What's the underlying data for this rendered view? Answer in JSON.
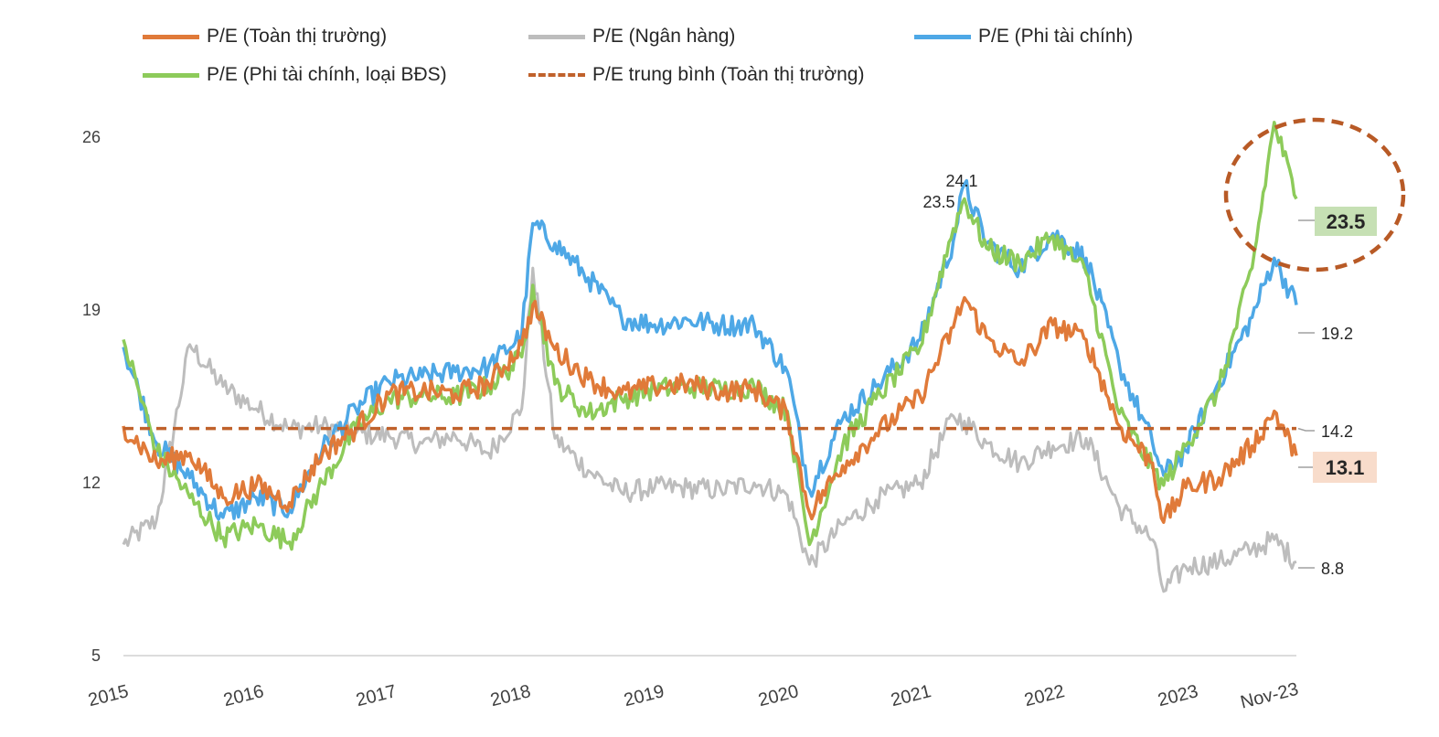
{
  "legend": [
    {
      "label": "P/E (Toàn thị trường)",
      "color": "#E07A39",
      "style": "solid"
    },
    {
      "label": "P/E (Ngân hàng)",
      "color": "#BDBDBD",
      "style": "solid"
    },
    {
      "label": "P/E (Phi tài chính)",
      "color": "#4EA8E6",
      "style": "solid"
    },
    {
      "label": "P/E (Phi tài chính, loại BĐS)",
      "color": "#8DCB5A",
      "style": "solid"
    },
    {
      "label": "P/E trung bình (Toàn thị trường)",
      "color": "#C0612B",
      "style": "dashed"
    }
  ],
  "chart_data": {
    "type": "line",
    "x_axis": {
      "tick_labels": [
        "2015",
        "2016",
        "2017",
        "2018",
        "2019",
        "2020",
        "2021",
        "2022",
        "2023",
        "Nov-23"
      ],
      "range": [
        "2015-01",
        "2023-11"
      ]
    },
    "y_axis": {
      "ticks": [
        5,
        12,
        19,
        26
      ],
      "range": [
        5,
        27
      ],
      "grid": false
    },
    "x": [
      "2015-01",
      "2015-04",
      "2015-07",
      "2015-10",
      "2016-01",
      "2016-04",
      "2016-07",
      "2016-10",
      "2017-01",
      "2017-04",
      "2017-07",
      "2017-10",
      "2018-01",
      "2018-02",
      "2018-04",
      "2018-07",
      "2018-10",
      "2019-01",
      "2019-04",
      "2019-07",
      "2019-10",
      "2020-01",
      "2020-03",
      "2020-06",
      "2020-09",
      "2021-01",
      "2021-04",
      "2021-05",
      "2021-07",
      "2021-10",
      "2022-01",
      "2022-04",
      "2022-07",
      "2022-10",
      "2022-11",
      "2023-01",
      "2023-04",
      "2023-07",
      "2023-09",
      "2023-11"
    ],
    "series": [
      {
        "name": "P/E (Toàn thị trường)",
        "color": "#E07A39",
        "values": [
          14.3,
          12.8,
          13.2,
          11.4,
          11.9,
          11.2,
          13.2,
          14.2,
          15.6,
          15.7,
          15.6,
          16.0,
          17.6,
          19.2,
          17.4,
          16.2,
          15.6,
          15.9,
          16.0,
          15.7,
          15.8,
          14.8,
          10.8,
          12.7,
          14.0,
          15.5,
          18.3,
          19.5,
          17.9,
          16.8,
          18.4,
          17.8,
          14.3,
          12.8,
          10.4,
          11.8,
          12.2,
          13.5,
          14.9,
          13.1
        ]
      },
      {
        "name": "P/E (Ngân hàng)",
        "color": "#BDBDBD",
        "values": [
          9.5,
          10.5,
          17.6,
          15.9,
          15.0,
          14.2,
          14.3,
          14.0,
          13.9,
          13.6,
          13.9,
          13.2,
          15.0,
          20.7,
          13.8,
          12.5,
          11.6,
          11.8,
          11.8,
          11.7,
          12.0,
          11.5,
          8.7,
          10.3,
          11.3,
          12.0,
          14.7,
          14.5,
          13.6,
          12.8,
          13.5,
          13.8,
          11.0,
          9.7,
          7.6,
          8.6,
          8.8,
          9.3,
          9.7,
          8.8
        ]
      },
      {
        "name": "P/E (Phi tài chính)",
        "color": "#4EA8E6",
        "values": [
          17.5,
          13.6,
          12.2,
          10.6,
          11.4,
          10.9,
          13.4,
          15.0,
          16.1,
          16.3,
          16.5,
          16.7,
          18.0,
          22.5,
          21.7,
          20.3,
          18.7,
          18.4,
          18.6,
          18.4,
          18.4,
          16.5,
          11.7,
          14.6,
          15.9,
          17.8,
          21.8,
          24.1,
          21.7,
          20.7,
          22.1,
          21.1,
          16.8,
          13.6,
          12.3,
          13.3,
          16.1,
          18.7,
          21.1,
          19.2
        ]
      },
      {
        "name": "P/E (Phi tài chính, loại BĐS)",
        "color": "#8DCB5A",
        "values": [
          17.8,
          13.3,
          11.4,
          9.8,
          10.3,
          9.6,
          12.0,
          14.2,
          15.4,
          15.5,
          15.5,
          15.9,
          17.1,
          20.0,
          16.0,
          14.8,
          15.4,
          15.8,
          15.9,
          15.8,
          15.9,
          14.9,
          9.5,
          13.5,
          15.4,
          17.5,
          22.3,
          23.5,
          21.5,
          20.9,
          22.0,
          20.5,
          14.8,
          12.6,
          11.9,
          13.5,
          15.8,
          20.7,
          26.6,
          23.5
        ]
      }
    ],
    "reference_lines": [
      {
        "name": "P/E trung bình (Toàn thị trường)",
        "value": 14.2,
        "color": "#C0612B",
        "style": "dashed"
      }
    ],
    "annotations": {
      "peak_labels": [
        "23.5",
        "24.1"
      ],
      "end_labels": [
        "23.5",
        "19.2",
        "14.2",
        "13.1",
        "8.8"
      ],
      "highlight_circle": "around recent peak of P/E (Phi tài chính, loại BĐS)"
    }
  }
}
